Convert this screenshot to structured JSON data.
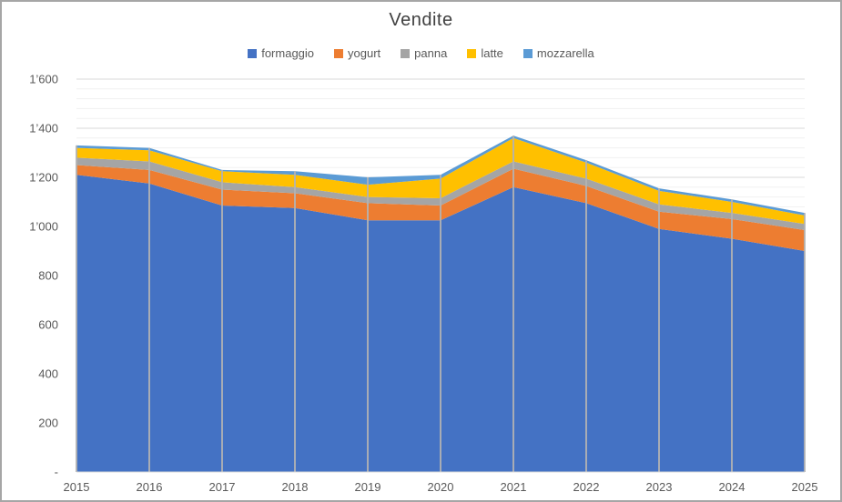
{
  "chart": {
    "title": "Vendite"
  },
  "chart_data": {
    "type": "area",
    "stacked": true,
    "title": "Vendite",
    "categories": [
      "2015",
      "2016",
      "2017",
      "2018",
      "2019",
      "2020",
      "2021",
      "2022",
      "2023",
      "2024",
      "2025"
    ],
    "series": [
      {
        "name": "formaggio",
        "color": "#4472C4",
        "values": [
          1210,
          1175,
          1085,
          1075,
          1025,
          1025,
          1160,
          1095,
          990,
          950,
          900
        ]
      },
      {
        "name": "yogurt",
        "color": "#ED7D31",
        "values": [
          40,
          55,
          65,
          60,
          70,
          60,
          75,
          70,
          70,
          80,
          85
        ]
      },
      {
        "name": "panna",
        "color": "#A5A5A5",
        "values": [
          30,
          35,
          30,
          25,
          25,
          30,
          30,
          30,
          30,
          25,
          25
        ]
      },
      {
        "name": "latte",
        "color": "#FFC000",
        "values": [
          40,
          45,
          45,
          50,
          50,
          80,
          95,
          65,
          55,
          45,
          35
        ]
      },
      {
        "name": "mozzarella",
        "color": "#5B9BD5",
        "values": [
          10,
          10,
          5,
          15,
          30,
          15,
          10,
          10,
          10,
          10,
          10
        ]
      }
    ],
    "totals": [
      1330,
      1320,
      1230,
      1225,
      1200,
      1210,
      1370,
      1270,
      1155,
      1110,
      1055
    ],
    "ylim": [
      0,
      1600
    ],
    "y_major_unit": 200,
    "y_minor_unit": 40,
    "y_tick_labels": [
      "-",
      "200",
      "400",
      "600",
      "800",
      "1’000",
      "1’200",
      "1’400",
      "1’600"
    ],
    "legend_position": "top",
    "grid": true,
    "drop_lines": true
  },
  "colors": {
    "text": "#595959",
    "title": "#404040",
    "grid_major": "#D9D9D9",
    "grid_minor": "#F1F1F1",
    "drop_line": "#B3B3B3",
    "axis_line": "#D9D9D9",
    "border": "#A6A6A6",
    "background": "#FFFFFF"
  }
}
